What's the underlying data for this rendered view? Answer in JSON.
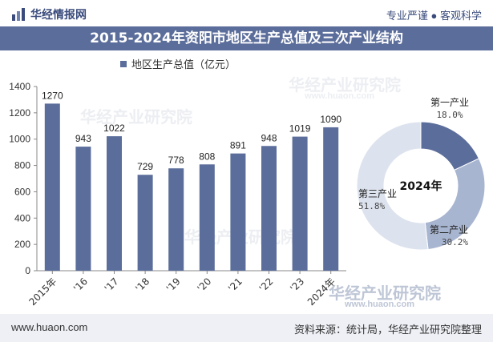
{
  "header": {
    "site_name": "华经情报网",
    "slogan": "专业严谨 ● 客观科学"
  },
  "title": "2015-2024年资阳市地区生产总值及三次产业结构",
  "footer": {
    "url": "www.huaon.com",
    "source": "资料来源：统计局，华经产业研究院整理"
  },
  "watermark": {
    "text": "华经产业研究院",
    "url": "www.huaon.com"
  },
  "colors": {
    "primary": "#5b6d9a",
    "secondary": "#a8b5d0",
    "tertiary": "#dde3ee",
    "title_bar": "#5b6d9a"
  },
  "chart_data": [
    {
      "type": "bar",
      "title": "",
      "series": [
        {
          "name": "地区生产总值（亿元）",
          "values": [
            1270,
            943,
            1022,
            729,
            778,
            808,
            891,
            948,
            1019,
            1090
          ]
        }
      ],
      "categories": [
        "2015年",
        "'16",
        "'17",
        "'18",
        "'19",
        "'20",
        "'21",
        "'22",
        "'23",
        "2024年"
      ],
      "data_labels": [
        "1270",
        "943",
        "1022",
        "729",
        "778",
        "808",
        "891",
        "948",
        "1019",
        "1090"
      ],
      "ylim": [
        0,
        1400
      ],
      "yticks": [
        0,
        200,
        400,
        600,
        800,
        1000,
        1200,
        1400
      ],
      "grid": false,
      "legend": "top-left"
    },
    {
      "type": "pie",
      "center_label": "2024年",
      "slices": [
        {
          "name": "第一产业",
          "value": 18.0,
          "label": "18.0%",
          "color": "#5b6d9a"
        },
        {
          "name": "第二产业",
          "value": 30.2,
          "label": "30.2%",
          "color": "#a8b5d0"
        },
        {
          "name": "第三产业",
          "value": 51.8,
          "label": "51.8%",
          "color": "#dde3ee"
        }
      ]
    }
  ]
}
